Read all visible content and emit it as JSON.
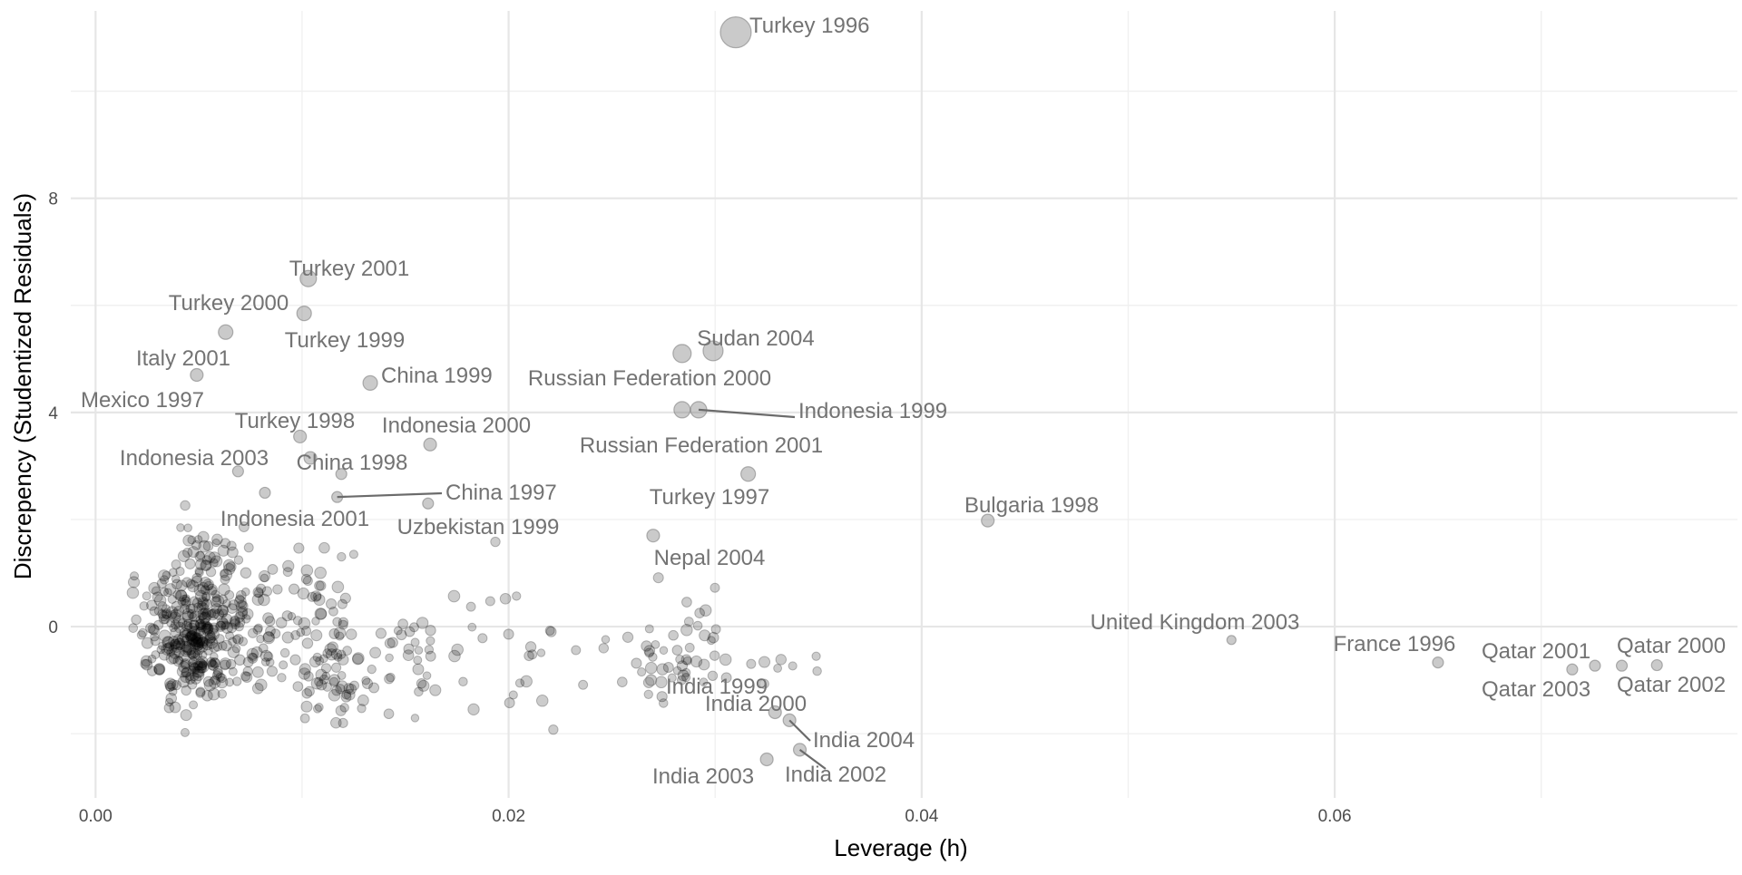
{
  "chart_data": {
    "type": "scatter",
    "title": "",
    "xlabel": "Leverage (h)",
    "ylabel": "Discrepency (Studentized Residuals)",
    "xlim": [
      -0.0012,
      0.0795
    ],
    "ylim": [
      -3.2,
      11.5
    ],
    "x_ticks": [
      {
        "value": 0.0,
        "label": "0.00"
      },
      {
        "value": 0.02,
        "label": "0.02"
      },
      {
        "value": 0.04,
        "label": "0.04"
      },
      {
        "value": 0.06,
        "label": "0.06"
      }
    ],
    "y_ticks": [
      {
        "value": 0,
        "label": "0"
      },
      {
        "value": 4,
        "label": "4"
      },
      {
        "value": 8,
        "label": "8"
      }
    ],
    "grid": true,
    "point_color": "#000000",
    "highlight_color": "#808080",
    "label_color": "#737373",
    "labeled_points": [
      {
        "label": "Turkey 1996",
        "x": 0.031,
        "y": 11.1
      },
      {
        "label": "Turkey 2001",
        "x": 0.0103,
        "y": 6.5
      },
      {
        "label": "Turkey 2000",
        "x": 0.0101,
        "y": 5.85
      },
      {
        "label": "Turkey 1999",
        "x": 0.0063,
        "y": 5.5
      },
      {
        "label": "Italy 2001",
        "x": 0.0049,
        "y": 4.7
      },
      {
        "label": "Mexico 1997",
        "x": 0.0133,
        "y": 4.55
      },
      {
        "label": "China 1999",
        "x": 0.0162,
        "y": 3.4
      },
      {
        "label": "Turkey 1998",
        "x": 0.0099,
        "y": 3.55
      },
      {
        "label": "Indonesia 2000",
        "x": 0.0104,
        "y": 3.15
      },
      {
        "label": "China 1998",
        "x": 0.0119,
        "y": 2.85
      },
      {
        "label": "Indonesia 2003",
        "x": 0.0069,
        "y": 2.9
      },
      {
        "label": "China 1997",
        "x": 0.0117,
        "y": 2.42
      },
      {
        "label": "Indonesia 2001",
        "x": 0.0082,
        "y": 2.5
      },
      {
        "label": "Uzbekistan 1999",
        "x": 0.0161,
        "y": 2.3
      },
      {
        "label": "Sudan 2004",
        "x": 0.0299,
        "y": 5.15
      },
      {
        "label": "Russian Federation 2000",
        "x": 0.0284,
        "y": 5.1
      },
      {
        "label": "Indonesia 1999",
        "x": 0.0292,
        "y": 4.05
      },
      {
        "label": "Russian Federation 2001",
        "x": 0.0284,
        "y": 4.05
      },
      {
        "label": "Turkey 1997",
        "x": 0.0316,
        "y": 2.85
      },
      {
        "label": "Nepal 2004",
        "x": 0.027,
        "y": 1.7
      },
      {
        "label": "Bulgaria 1998",
        "x": 0.0432,
        "y": 1.98
      },
      {
        "label": "United Kingdom 2003",
        "x": 0.055,
        "y": -0.25
      },
      {
        "label": "France 1996",
        "x": 0.065,
        "y": -0.67
      },
      {
        "label": "Qatar 2001",
        "x": 0.0715,
        "y": -0.8
      },
      {
        "label": "Qatar 2000",
        "x": 0.0756,
        "y": -0.72
      },
      {
        "label": "Qatar 2003",
        "x": 0.0726,
        "y": -0.73
      },
      {
        "label": "Qatar 2002",
        "x": 0.0739,
        "y": -0.73
      },
      {
        "label": "India 1999",
        "x": 0.0269,
        "y": -1.0
      },
      {
        "label": "India 2000",
        "x": 0.0329,
        "y": -1.6
      },
      {
        "label": "India 2004",
        "x": 0.0336,
        "y": -1.75
      },
      {
        "label": "India 2003",
        "x": 0.0325,
        "y": -2.48
      },
      {
        "label": "India 2002",
        "x": 0.0341,
        "y": -2.3
      }
    ]
  }
}
